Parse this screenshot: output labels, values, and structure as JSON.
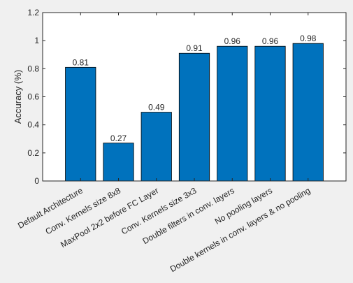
{
  "chart_data": {
    "type": "bar",
    "title": "",
    "xlabel": "",
    "ylabel": "Accuracy (%)",
    "ylim": [
      0,
      1.2
    ],
    "yticks": [
      "0",
      "0.2",
      "0.4",
      "0.6",
      "0.8",
      "1",
      "1.2"
    ],
    "grid": false,
    "categories": [
      "Default Architecture",
      "Conv. Kernels size 8x8",
      "MaxPool 2x2 before FC Layer",
      "Conv. Kernels size 3x3",
      "Double filters in conv. layers",
      "No pooling layers",
      "Double kernels in conv. layers & no pooling"
    ],
    "values": [
      0.81,
      0.27,
      0.49,
      0.91,
      0.96,
      0.96,
      0.98
    ],
    "value_labels": [
      "0.81",
      "0.27",
      "0.49",
      "0.91",
      "0.96",
      "0.96",
      "0.98"
    ],
    "colors": {
      "bar": "#0072bd",
      "bar_edge": "#000000",
      "axes_bg": "#ffffff",
      "figure_bg": "#f0f0f0"
    }
  }
}
